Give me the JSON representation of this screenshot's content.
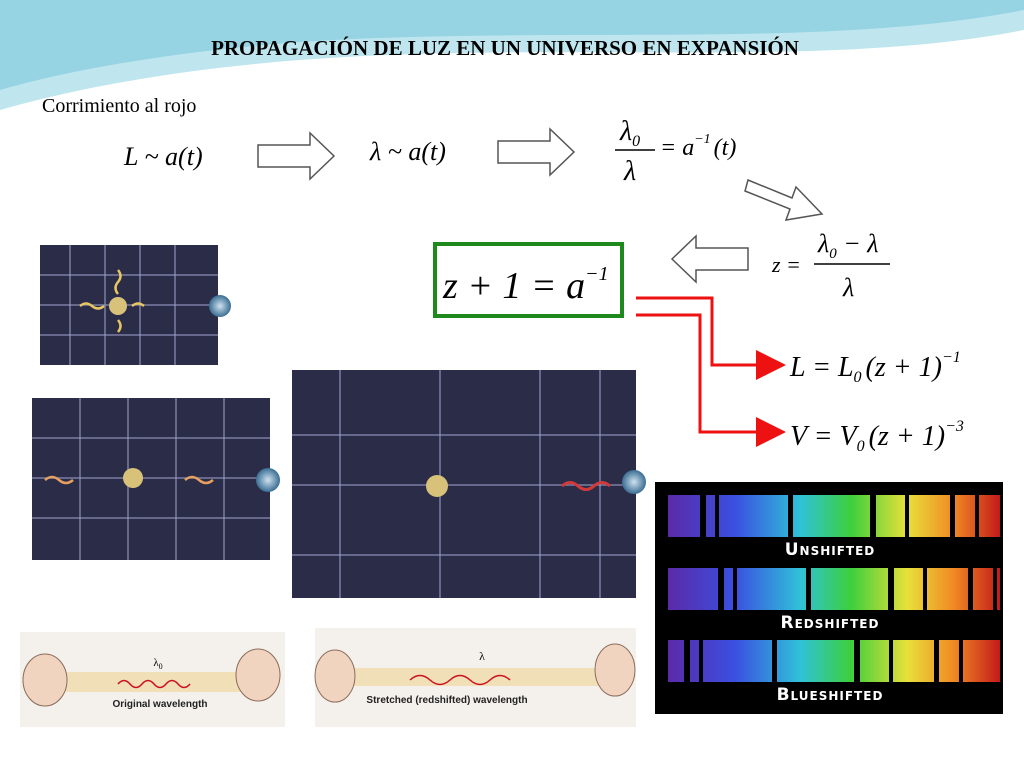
{
  "title": "PROPAGACIÓN DE LUZ EN UN UNIVERSO EN EXPANSIÓN",
  "subtitle": "Corrimiento al rojo",
  "equations": {
    "l_scale": "L ~ a(t)",
    "lambda_scale": "λ ~ a(t)",
    "ratio": {
      "num": "λ",
      "num_sub": "0",
      "den": "λ",
      "rhs": "= a",
      "rhs_sup": "−1",
      "rhs_end": "(t)"
    },
    "z_def": {
      "lhs": "z =",
      "num": "λ",
      "num_sub": "0",
      "num_end": " − λ",
      "den": "λ"
    },
    "boxed": {
      "main": "z + 1 = a",
      "sup": "−1"
    },
    "length": {
      "a": "L = L",
      "sub": "0",
      "b": "(z + 1)",
      "sup": "−1"
    },
    "volume": {
      "a": "V = V",
      "sub": "0",
      "b": "(z + 1)",
      "sup": "−3"
    }
  },
  "spectra": [
    "Unshifted",
    "Redshifted",
    "Blueshifted"
  ],
  "rubber_band": {
    "original": {
      "symbol": "λ",
      "symbol_sub": "0",
      "caption": "Original wavelength"
    },
    "stretched": {
      "symbol": "λ",
      "caption": "Stretched (redshifted) wavelength"
    }
  }
}
